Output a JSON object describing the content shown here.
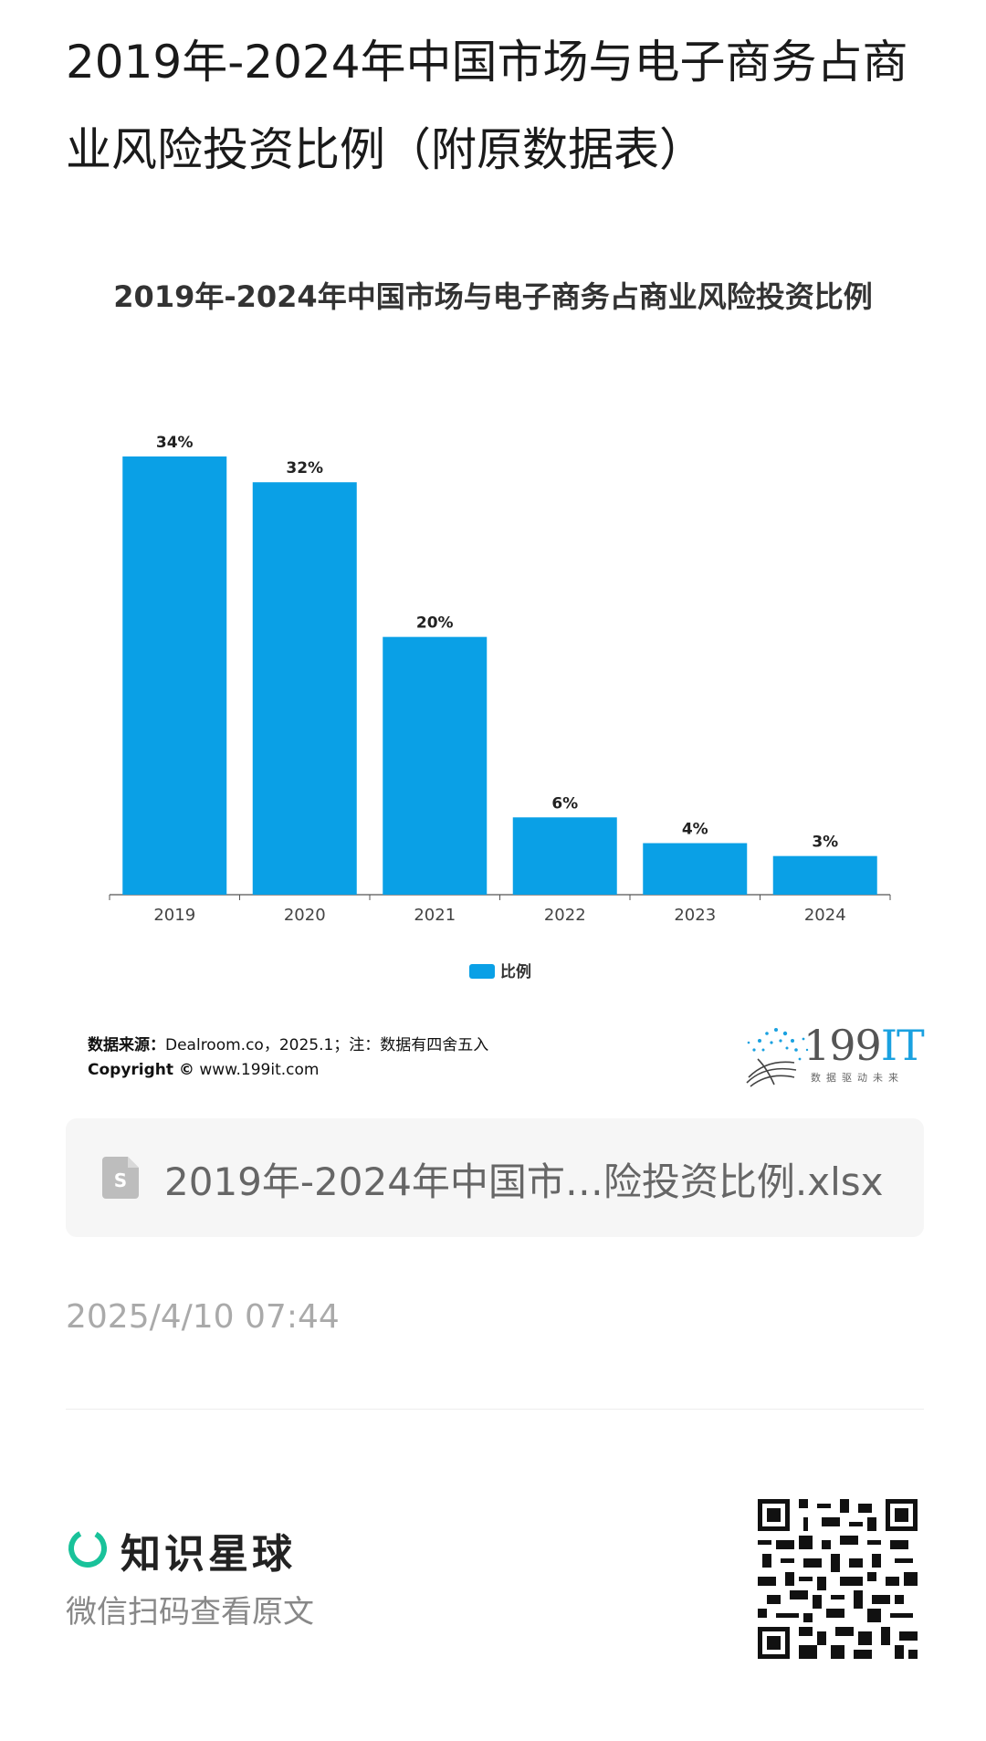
{
  "page": {
    "title": "2019年-2024年中国市场与电子商务占商业风险投资比例（附原数据表）"
  },
  "chart_data": {
    "type": "bar",
    "title": "2019年-2024年中国市场与电子商务占商业风险投资比例",
    "categories": [
      "2019",
      "2020",
      "2021",
      "2022",
      "2023",
      "2024"
    ],
    "series": [
      {
        "name": "比例",
        "values": [
          34,
          32,
          20,
          6,
          4,
          3
        ],
        "labels": [
          "34%",
          "32%",
          "20%",
          "6%",
          "4%",
          "3%"
        ]
      }
    ],
    "ylim": [
      0,
      34
    ],
    "color": "#0aa0e6",
    "legend": "bottom-center",
    "grid": false
  },
  "source": {
    "label": "数据来源：",
    "text": "Dealroom.co，2025.1；注：数据有四舍五入"
  },
  "copyright": {
    "label": "Copyright ©",
    "text": "www.199it.com"
  },
  "brand": {
    "name_num": "199",
    "name_it": "IT",
    "slogan": "数据驱动未来"
  },
  "file": {
    "icon": "spreadsheet-file-icon",
    "name": "2019年-2024年中国市…险投资比例.xlsx"
  },
  "timestamp": "2025/4/10 07:44",
  "footer": {
    "app_name": "知识星球",
    "scan_hint": "微信扫码查看原文",
    "logo_icon": "zsxq-ring-icon",
    "qr_icon": "qr-code-icon"
  }
}
